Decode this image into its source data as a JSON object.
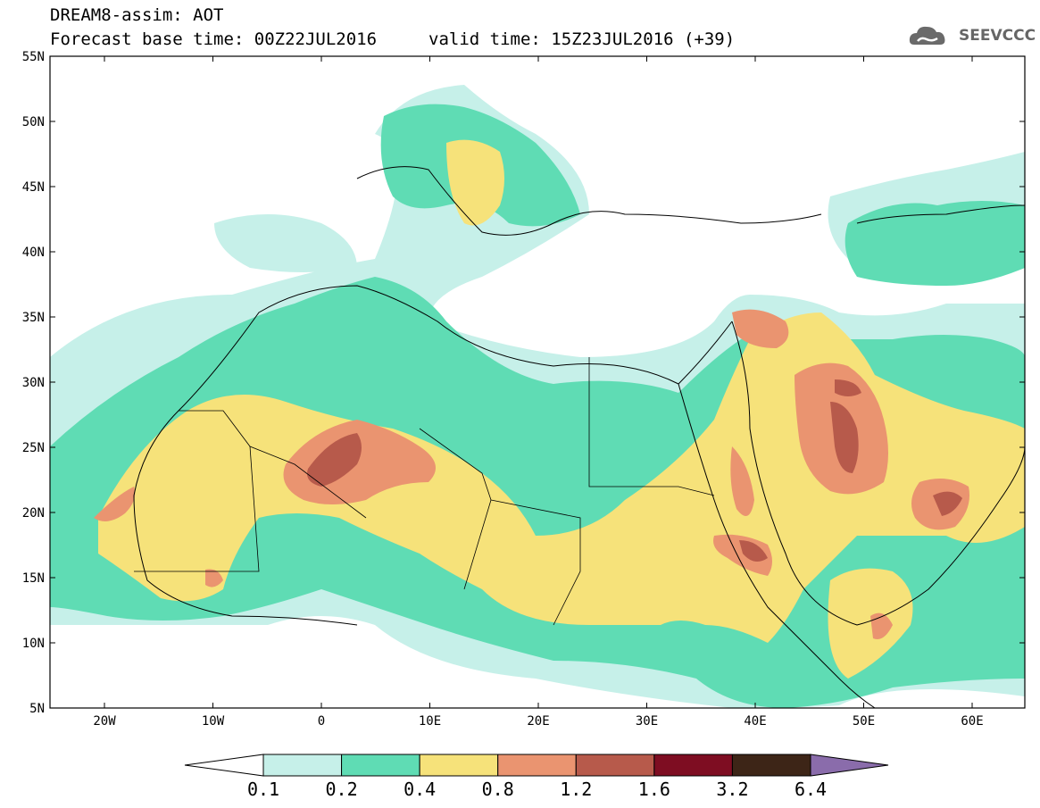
{
  "header": {
    "title": "DREAM8-assim: AOT",
    "base_time": "Forecast base time: 00Z22JUL2016",
    "valid_time": "valid time: 15Z23JUL2016 (+39)",
    "logo_text": "SEEVCCC"
  },
  "map": {
    "lat_labels": [
      "55N",
      "50N",
      "45N",
      "40N",
      "35N",
      "30N",
      "25N",
      "20N",
      "15N",
      "10N",
      "5N"
    ],
    "lon_labels": [
      "20W",
      "10W",
      "0",
      "10E",
      "20E",
      "30E",
      "40E",
      "50E",
      "60E"
    ]
  },
  "colorbar": {
    "labels": [
      "0.1",
      "0.2",
      "0.4",
      "0.8",
      "1.2",
      "1.6",
      "3.2",
      "6.4"
    ],
    "colors": [
      "#c6f0e9",
      "#5fdcb4",
      "#f6e27a",
      "#ea9470",
      "#b75a4b",
      "#7e0d22",
      "#3d2517",
      "#8a6cab"
    ]
  },
  "colors": {
    "very_low": "#c6f0e9",
    "low": "#5fdcb4",
    "moderate": "#f6e27a",
    "high": "#ea9470",
    "very_high": "#b75a4b"
  }
}
